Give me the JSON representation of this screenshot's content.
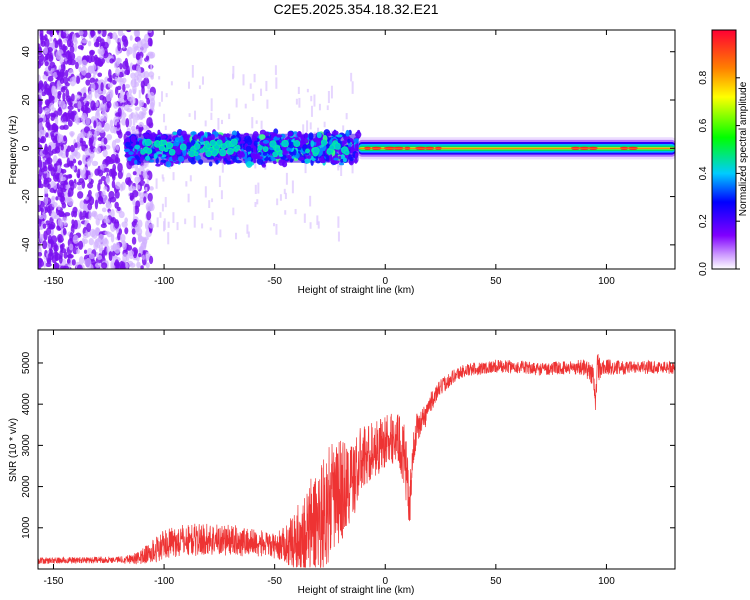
{
  "title": "C2E5.2025.354.18.32.E21",
  "chart_data": [
    {
      "type": "heatmap",
      "name": "spectrogram",
      "xlabel": "Height of straight line (km)",
      "ylabel": "Frequency (Hz)",
      "xlim": [
        -157,
        131
      ],
      "ylim": [
        -50,
        49
      ],
      "xticks": [
        -150,
        -100,
        -50,
        0,
        50,
        100
      ],
      "yticks": [
        -40,
        -20,
        0,
        20,
        40
      ],
      "colorbar": {
        "label": "Normalized spectral amplitude",
        "range": [
          0,
          1
        ],
        "ticks": [
          0.0,
          0.2,
          0.4,
          0.6,
          0.8
        ],
        "colormap": [
          "#ffffff",
          "#cc99ff",
          "#8000ff",
          "#0000ff",
          "#00ccff",
          "#00ff00",
          "#ffff00",
          "#ff8000",
          "#ff0000"
        ]
      },
      "features": {
        "noise_region_km": [
          -157,
          -110
        ],
        "scatter_band_km": [
          -117,
          -12
        ],
        "scatter_band_halfwidth_hz": 6,
        "carrier_line_km": [
          -12,
          131
        ],
        "carrier_frequency_hz": 0,
        "carrier_halfwidth_hz": 3
      }
    },
    {
      "type": "line",
      "name": "snr",
      "xlabel": "Height of straight line (km)",
      "ylabel": "SNR (10 * v/v)",
      "xlim": [
        -157,
        131
      ],
      "ylim": [
        0,
        5800
      ],
      "xticks": [
        -150,
        -100,
        -50,
        0,
        50,
        100
      ],
      "yticks": [
        1000,
        2000,
        3000,
        4000,
        5000
      ],
      "color": "#ee3333",
      "series": [
        {
          "name": "SNR",
          "x": [
            -157,
            -140,
            -120,
            -112,
            -105,
            -100,
            -90,
            -80,
            -70,
            -60,
            -50,
            -45,
            -40,
            -35,
            -30,
            -25,
            -20,
            -15,
            -12,
            -10,
            -5,
            0,
            5,
            8,
            10,
            11,
            12,
            14,
            18,
            20,
            25,
            30,
            35,
            40,
            50,
            60,
            70,
            80,
            90,
            94,
            95,
            96,
            97,
            100,
            110,
            120,
            131
          ],
          "y": [
            200,
            210,
            230,
            260,
            420,
            600,
            700,
            720,
            700,
            650,
            550,
            600,
            700,
            900,
            1200,
            1600,
            1900,
            2100,
            2500,
            2700,
            2900,
            3100,
            3200,
            2900,
            2000,
            1500,
            2500,
            3400,
            3700,
            4000,
            4400,
            4650,
            4800,
            4850,
            4920,
            4900,
            4850,
            4880,
            4900,
            4700,
            4000,
            5000,
            4850,
            4900,
            4880,
            4900,
            4890
          ],
          "noise_amplitude": [
            80,
            80,
            80,
            150,
            300,
            350,
            400,
            400,
            380,
            350,
            300,
            450,
            800,
            1200,
            1400,
            1400,
            1300,
            1000,
            900,
            800,
            700,
            650,
            600,
            800,
            900,
            600,
            500,
            400,
            300,
            250,
            200,
            180,
            160,
            160,
            160,
            160,
            160,
            160,
            200,
            300,
            400,
            400,
            300,
            200,
            160,
            160,
            160
          ]
        }
      ]
    }
  ]
}
